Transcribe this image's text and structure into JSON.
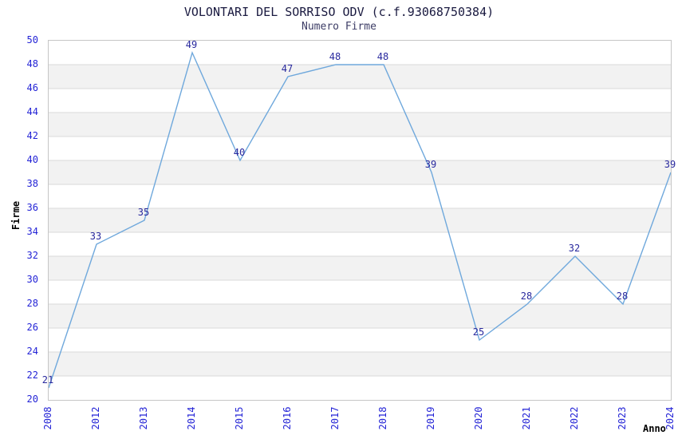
{
  "chart_data": {
    "type": "line",
    "title": "VOLONTARI DEL SORRISO ODV (c.f.93068750384)",
    "subtitle": "Numero Firme",
    "xlabel": "Anno",
    "ylabel": "Firme",
    "categories": [
      "2008",
      "2012",
      "2013",
      "2014",
      "2015",
      "2016",
      "2017",
      "2018",
      "2019",
      "2020",
      "2021",
      "2022",
      "2023",
      "2024"
    ],
    "values": [
      21,
      33,
      35,
      49,
      40,
      47,
      48,
      48,
      39,
      25,
      28,
      32,
      28,
      39
    ],
    "ylim": [
      20,
      50
    ],
    "ytick_step": 2,
    "grid": "alternating-horizontal-bands",
    "legend": "none",
    "markers": "none",
    "data_labels_shown": true
  },
  "styles": {
    "background": "#ffffff",
    "line_color": "#6fa8dc",
    "band_color": "#f2f2f2",
    "grid_line_color": "#d9d9d9",
    "plot_border_color": "#c6c6c6",
    "axis_tick_color": "#2424d6",
    "data_label_color": "#29299e",
    "title_color": "#1a1a40",
    "subtitle_color": "#3d3d66",
    "axis_title_color": "#000000"
  }
}
